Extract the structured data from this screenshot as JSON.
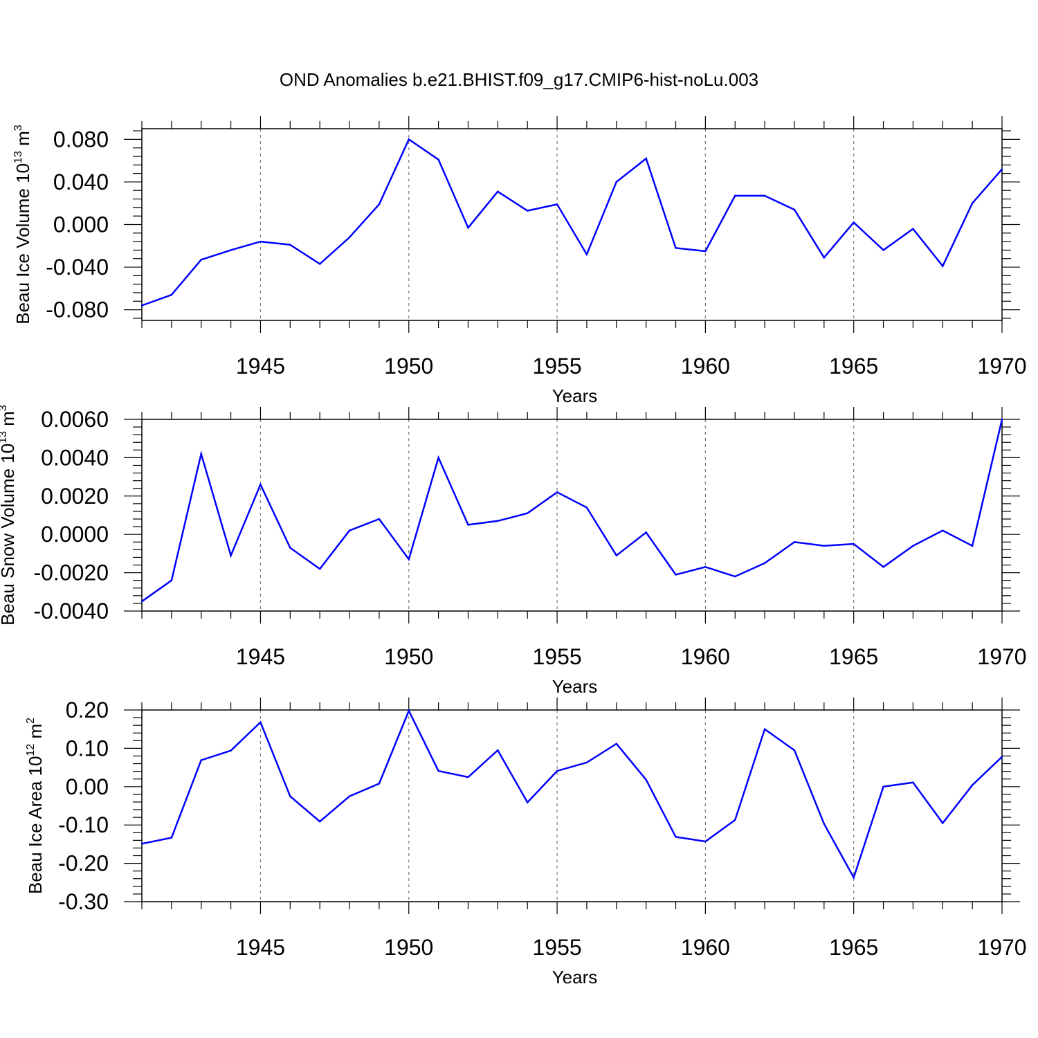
{
  "title": "OND Anomalies b.e21.BHIST.f09_g17.CMIP6-hist-noLu.003",
  "line_color": "#0000ff",
  "chart_data": [
    {
      "type": "line",
      "ylabel": "Beau Ice Volume 10",
      "ylabel_sup": "13",
      "ylabel_unit": " m",
      "ylabel_unit_sup": "3",
      "xlabel": "Years",
      "xlim": [
        1941,
        1970
      ],
      "ylim": [
        -0.09,
        0.09
      ],
      "xticks": [
        1945,
        1950,
        1955,
        1960,
        1965,
        1970
      ],
      "yticks": [
        -0.08,
        -0.04,
        0.0,
        0.04,
        0.08
      ],
      "ytick_labels": [
        "-0.080",
        "-0.040",
        "0.000",
        "0.040",
        "0.080"
      ],
      "x": [
        1941,
        1942,
        1943,
        1944,
        1945,
        1946,
        1947,
        1948,
        1949,
        1950,
        1951,
        1952,
        1953,
        1954,
        1955,
        1956,
        1957,
        1958,
        1959,
        1960,
        1961,
        1962,
        1963,
        1964,
        1965,
        1966,
        1967,
        1968,
        1969,
        1970
      ],
      "values": [
        -0.076,
        -0.066,
        -0.033,
        -0.024,
        -0.016,
        -0.019,
        -0.037,
        -0.012,
        0.019,
        0.08,
        0.061,
        -0.003,
        0.031,
        0.013,
        0.019,
        -0.028,
        0.04,
        0.062,
        -0.022,
        -0.025,
        0.027,
        0.027,
        0.014,
        -0.031,
        0.002,
        -0.024,
        -0.004,
        -0.039,
        0.02,
        0.052
      ]
    },
    {
      "type": "line",
      "ylabel": "Beau Snow Volume 10",
      "ylabel_sup": "13",
      "ylabel_unit": " m",
      "ylabel_unit_sup": "3",
      "xlabel": "Years",
      "xlim": [
        1941,
        1970
      ],
      "ylim": [
        -0.004,
        0.006
      ],
      "xticks": [
        1945,
        1950,
        1955,
        1960,
        1965,
        1970
      ],
      "yticks": [
        -0.004,
        -0.002,
        0.0,
        0.002,
        0.004,
        0.006
      ],
      "ytick_labels": [
        "-0.0040",
        "-0.0020",
        "0.0000",
        "0.0020",
        "0.0040",
        "0.0060"
      ],
      "x": [
        1941,
        1942,
        1943,
        1944,
        1945,
        1946,
        1947,
        1948,
        1949,
        1950,
        1951,
        1952,
        1953,
        1954,
        1955,
        1956,
        1957,
        1958,
        1959,
        1960,
        1961,
        1962,
        1963,
        1964,
        1965,
        1966,
        1967,
        1968,
        1969,
        1970
      ],
      "values": [
        -0.0035,
        -0.0024,
        0.0042,
        -0.0011,
        0.0026,
        -0.0007,
        -0.0018,
        0.0002,
        0.0008,
        -0.0013,
        0.004,
        0.0005,
        0.0007,
        0.0011,
        0.0022,
        0.0014,
        -0.0011,
        0.0001,
        -0.0021,
        -0.0017,
        -0.0022,
        -0.0015,
        -0.0004,
        -0.0006,
        -0.0005,
        -0.0017,
        -0.0006,
        0.0002,
        -0.0006,
        0.006
      ]
    },
    {
      "type": "line",
      "ylabel": "Beau Ice Area 10",
      "ylabel_sup": "12",
      "ylabel_unit": " m",
      "ylabel_unit_sup": "2",
      "xlabel": "Years",
      "xlim": [
        1941,
        1970
      ],
      "ylim": [
        -0.3,
        0.2
      ],
      "xticks": [
        1945,
        1950,
        1955,
        1960,
        1965,
        1970
      ],
      "yticks": [
        -0.3,
        -0.2,
        -0.1,
        0.0,
        0.1,
        0.2
      ],
      "ytick_labels": [
        "-0.30",
        "-0.20",
        "-0.10",
        "0.00",
        "0.10",
        "0.20"
      ],
      "x": [
        1941,
        1942,
        1943,
        1944,
        1945,
        1946,
        1947,
        1948,
        1949,
        1950,
        1951,
        1952,
        1953,
        1954,
        1955,
        1956,
        1957,
        1958,
        1959,
        1960,
        1961,
        1962,
        1963,
        1964,
        1965,
        1966,
        1967,
        1968,
        1969,
        1970
      ],
      "values": [
        -0.149,
        -0.133,
        0.069,
        0.094,
        0.168,
        -0.025,
        -0.091,
        -0.025,
        0.008,
        0.198,
        0.041,
        0.025,
        0.095,
        -0.041,
        0.041,
        0.063,
        0.112,
        0.018,
        -0.131,
        -0.143,
        -0.087,
        0.15,
        0.095,
        -0.097,
        -0.237,
        0.0,
        0.011,
        -0.095,
        0.004,
        0.078
      ]
    }
  ]
}
